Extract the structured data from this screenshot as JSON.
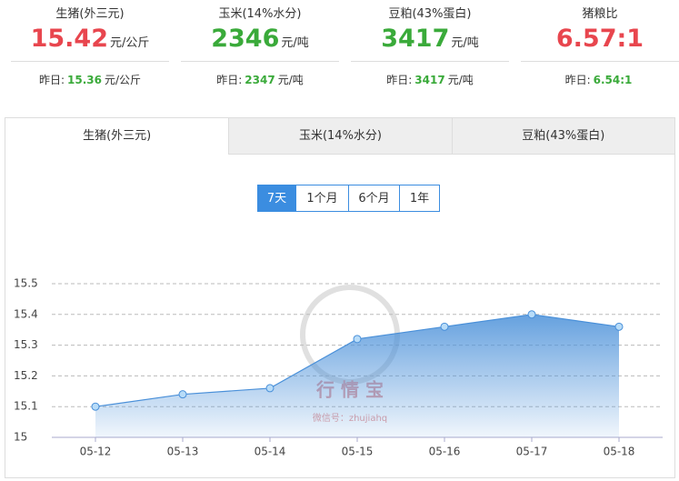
{
  "price_cards": [
    {
      "label": "生猪(外三元)",
      "value": 15.42,
      "unit": "元/公斤",
      "color": "#e8464e",
      "yesterday_label": "昨日:",
      "yesterday_value": 15.36,
      "yesterday_unit": "元/公斤"
    },
    {
      "label": "玉米(14%水分)",
      "value": 2346,
      "unit": "元/吨",
      "color": "#3aaa3a",
      "yesterday_label": "昨日:",
      "yesterday_value": 2347,
      "yesterday_unit": "元/吨"
    },
    {
      "label": "豆粕(43%蛋白)",
      "value": 3417,
      "unit": "元/吨",
      "color": "#3aaa3a",
      "yesterday_label": "昨日:",
      "yesterday_value": 3417,
      "yesterday_unit": "元/吨"
    },
    {
      "label": "猪粮比",
      "value": "6.57:1",
      "color": "#e8464e",
      "yesterday_label": "昨日:",
      "yesterday_value": "6.54:1"
    }
  ],
  "tabs": [
    "生猪(外三元)",
    "玉米(14%水分)",
    "豆粕(43%蛋白)"
  ],
  "active_tab": 0,
  "range_buttons": [
    "7天",
    "1个月",
    "6个月",
    "1年"
  ],
  "active_range": 0,
  "watermark": {
    "title": "行 情 宝",
    "subtitle": "微信号：zhujiahq"
  },
  "chart_data": {
    "type": "line",
    "categories": [
      "05-12",
      "05-13",
      "05-14",
      "05-15",
      "05-16",
      "05-17",
      "05-18"
    ],
    "values": [
      15.1,
      15.14,
      15.16,
      15.32,
      15.36,
      15.4,
      15.36
    ],
    "color": "#4a90d9",
    "ylim": [
      15,
      15.5
    ],
    "yticks": [
      15,
      15.1,
      15.2,
      15.3,
      15.4,
      15.5
    ],
    "grid": true
  }
}
